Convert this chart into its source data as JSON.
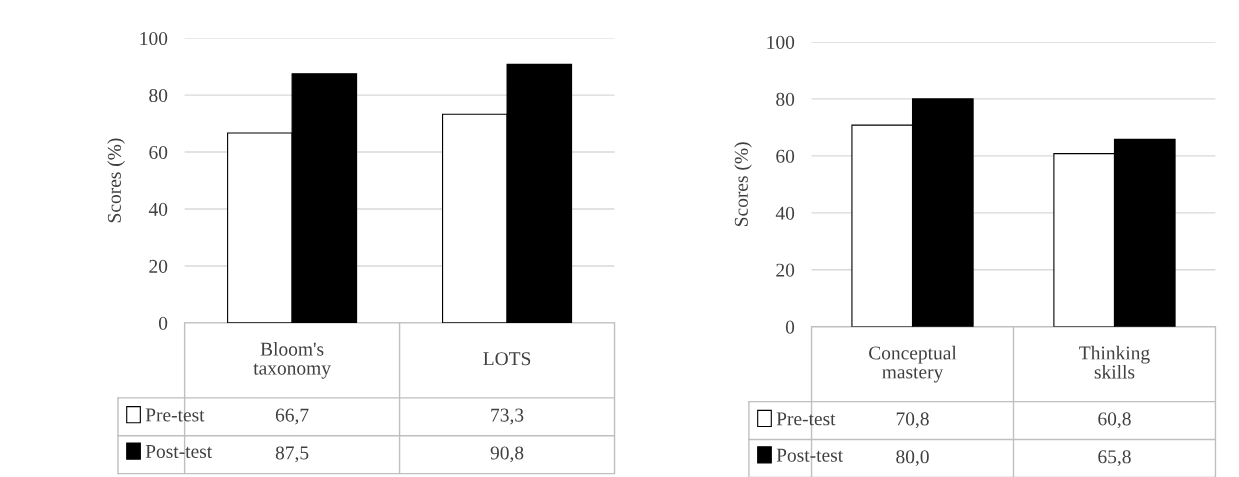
{
  "chart_data": [
    {
      "type": "bar",
      "ylabel": "Scores (%)",
      "categories": [
        "Bloom's taxonomy",
        "LOTS"
      ],
      "ylim": [
        0,
        100
      ],
      "yticks": [
        0,
        20,
        40,
        60,
        80,
        100
      ],
      "grid": "y",
      "legend": "bottom left",
      "series": [
        {
          "name": "Pre-test",
          "color": "#ffffff",
          "values": [
            66.7,
            73.3
          ],
          "value_labels": [
            "66,7",
            "73,3"
          ]
        },
        {
          "name": "Post-test",
          "color": "#000000",
          "values": [
            87.5,
            90.8
          ],
          "value_labels": [
            "87,5",
            "90,8"
          ]
        }
      ]
    },
    {
      "type": "bar",
      "ylabel": "Scores (%)",
      "categories": [
        "Conceptual mastery",
        "Thinking skills"
      ],
      "ylim": [
        0,
        100
      ],
      "yticks": [
        0,
        20,
        40,
        60,
        80,
        100
      ],
      "grid": "y",
      "legend": "bottom left",
      "series": [
        {
          "name": "Pre-test",
          "color": "#ffffff",
          "values": [
            70.8,
            60.8
          ],
          "value_labels": [
            "70,8",
            "60,8"
          ]
        },
        {
          "name": "Post-test",
          "color": "#000000",
          "values": [
            80.0,
            65.8
          ],
          "value_labels": [
            "80,0",
            "65,8"
          ]
        }
      ]
    }
  ]
}
